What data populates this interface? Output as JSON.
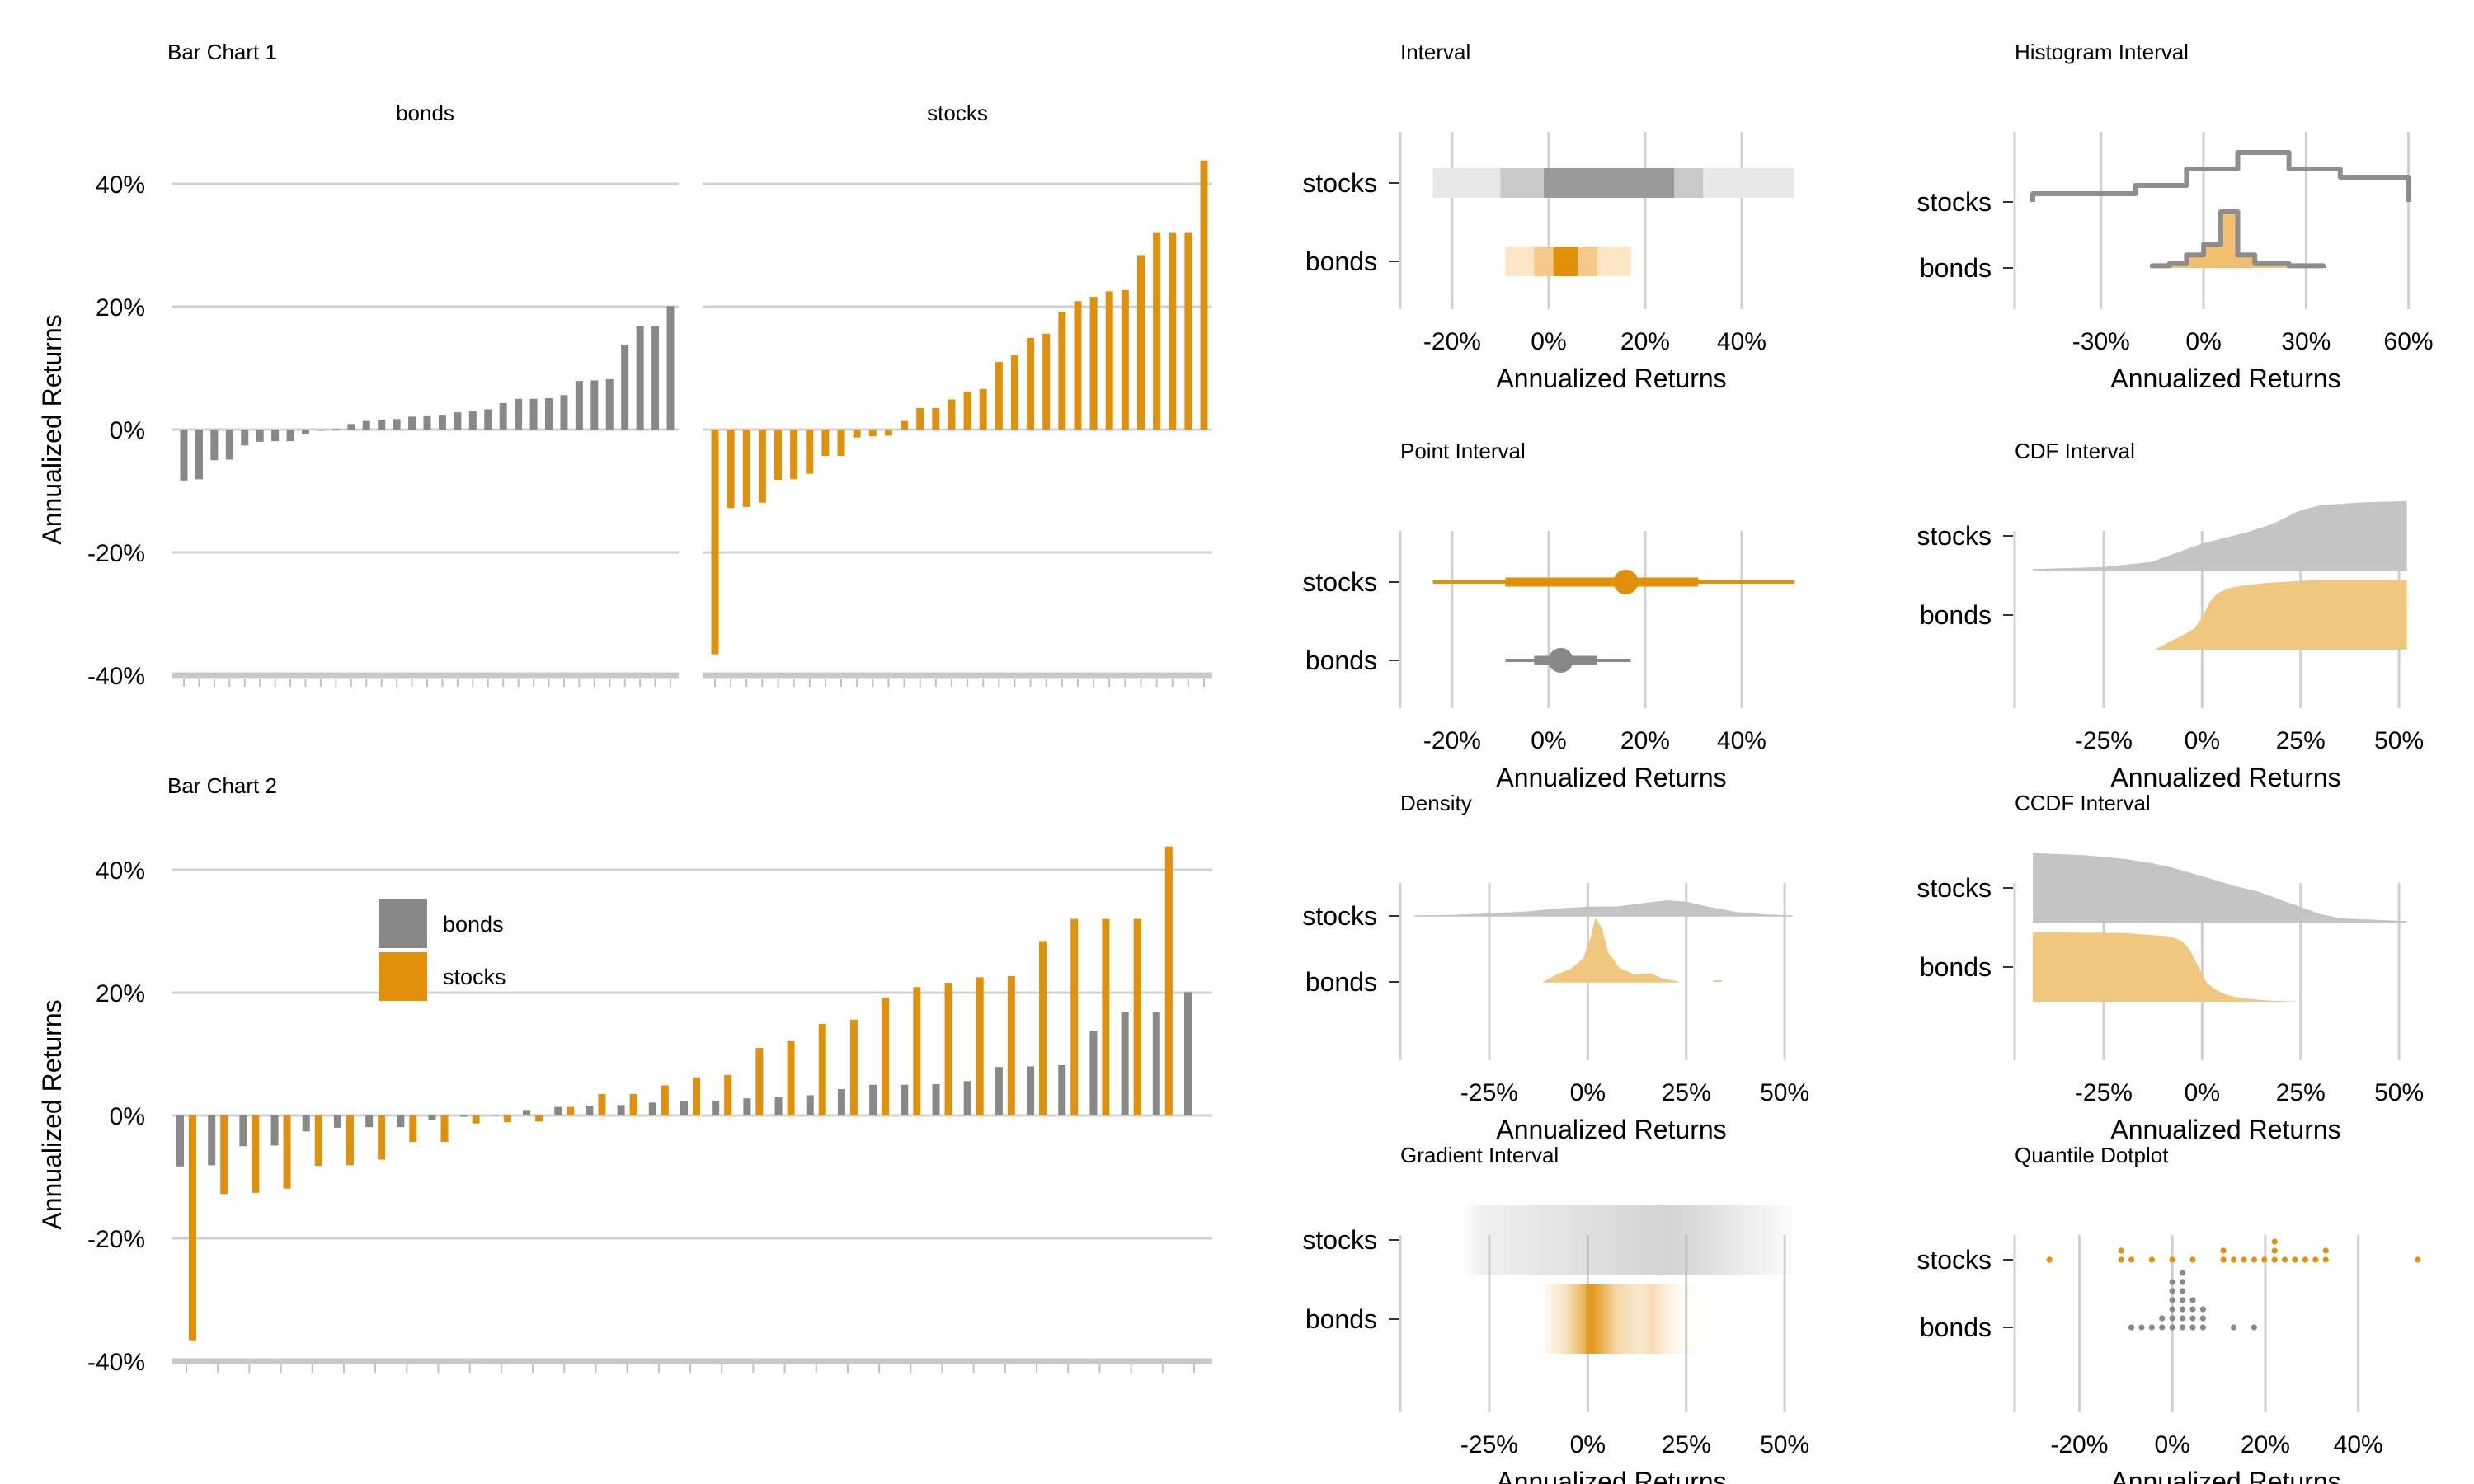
{
  "colors": {
    "bonds": "#888888",
    "stocks": "#E0900B",
    "grid": "#D0D0D0"
  },
  "axis_label": "Annualized Returns",
  "categories": [
    "stocks",
    "bonds"
  ],
  "chart_data": [
    {
      "id": "bar1",
      "type": "bar",
      "title": "Bar Chart 1",
      "panels": [
        "bonds",
        "stocks"
      ],
      "ylabel": "Annualized Returns",
      "ylim": [
        -40,
        40
      ],
      "yticks": [
        "40%",
        "20%",
        "0%",
        "-20%",
        "-40%"
      ],
      "grid": true,
      "series": [
        {
          "name": "bonds",
          "values": [
            -8.3,
            -8.1,
            -5.0,
            -4.9,
            -2.6,
            -2.0,
            -1.9,
            -1.9,
            -0.8,
            -0.2,
            0.1,
            0.9,
            1.4,
            1.6,
            1.7,
            2.1,
            2.3,
            2.4,
            2.8,
            3.0,
            3.3,
            4.3,
            5.0,
            5.0,
            5.1,
            5.6,
            7.9,
            8.0,
            8.2,
            13.8,
            16.8,
            16.8,
            20.1
          ]
        },
        {
          "name": "stocks",
          "values": [
            -36.6,
            -12.8,
            -12.6,
            -11.9,
            -8.2,
            -8.1,
            -7.2,
            -4.3,
            -4.3,
            -1.3,
            -1.1,
            -1.0,
            1.4,
            3.5,
            3.5,
            4.9,
            6.2,
            6.6,
            11.0,
            12.1,
            14.9,
            15.6,
            19.2,
            20.9,
            21.6,
            22.5,
            22.7,
            28.4,
            32.0,
            32.0,
            32.0,
            43.8
          ]
        }
      ]
    },
    {
      "id": "bar2",
      "type": "bar",
      "title": "Bar Chart 2",
      "ylabel": "Annualized Returns",
      "ylim": [
        -40,
        40
      ],
      "yticks": [
        "40%",
        "20%",
        "0%",
        "-20%",
        "-40%"
      ],
      "grid": true,
      "legend": "top-left",
      "series": [
        {
          "name": "bonds",
          "values": [
            -8.3,
            -8.1,
            -5.0,
            -4.9,
            -2.6,
            -2.0,
            -1.9,
            -1.9,
            -0.8,
            -0.2,
            0.1,
            0.9,
            1.4,
            1.6,
            1.7,
            2.1,
            2.3,
            2.4,
            2.8,
            3.0,
            3.3,
            4.3,
            5.0,
            5.0,
            5.1,
            5.6,
            7.9,
            8.0,
            8.2,
            13.8,
            16.8,
            16.8,
            20.1
          ]
        },
        {
          "name": "stocks",
          "values": [
            -36.6,
            -12.8,
            -12.6,
            -11.9,
            -8.2,
            -8.1,
            -7.2,
            -4.3,
            -4.3,
            -1.3,
            -1.1,
            -1.0,
            1.4,
            3.5,
            3.5,
            4.9,
            6.2,
            6.6,
            11.0,
            12.1,
            14.9,
            15.6,
            19.2,
            20.9,
            21.6,
            22.5,
            22.7,
            28.4,
            32.0,
            32.0,
            32.0,
            43.8
          ]
        }
      ]
    },
    {
      "id": "interval",
      "type": "interval",
      "title": "Interval",
      "xlabel": "Annualized Returns",
      "xlim": [
        -27,
        53
      ],
      "xticks": [
        -20,
        0,
        20,
        40
      ],
      "xticklabels": [
        "-20%",
        "0%",
        "20%",
        "40%"
      ],
      "series": [
        {
          "name": "stocks",
          "intervals": [
            [
              -24,
              51
            ],
            [
              -10,
              32
            ],
            [
              -1,
              26
            ]
          ]
        },
        {
          "name": "bonds",
          "intervals": [
            [
              -9,
              17
            ],
            [
              -3,
              10
            ],
            [
              1,
              6
            ]
          ]
        }
      ]
    },
    {
      "id": "histogram",
      "type": "histogram_interval",
      "title": "Histogram Interval",
      "xlabel": "Annualized Returns",
      "xlim": [
        -50,
        63
      ],
      "xticks": [
        -30,
        0,
        30,
        60
      ],
      "xticklabels": [
        "-30%",
        "0%",
        "30%",
        "60%"
      ],
      "series": [
        {
          "name": "stocks",
          "bins": [
            -50,
            -35,
            -20,
            -5,
            10,
            25,
            40,
            60
          ],
          "counts": [
            1,
            1,
            2,
            4,
            6,
            4,
            3
          ]
        },
        {
          "name": "bonds",
          "bins": [
            -15,
            -10,
            -5,
            0,
            5,
            10,
            15,
            20,
            25,
            35
          ],
          "counts": [
            1,
            2,
            6,
            11,
            26,
            6,
            2,
            2,
            1
          ]
        }
      ]
    },
    {
      "id": "point",
      "type": "point_interval",
      "title": "Point Interval",
      "xlabel": "Annualized Returns",
      "xlim": [
        -27,
        53
      ],
      "xticks": [
        -20,
        0,
        20,
        40
      ],
      "xticklabels": [
        "-20%",
        "0%",
        "20%",
        "40%"
      ],
      "series": [
        {
          "name": "stocks",
          "point": 16,
          "intervals": [
            [
              -24,
              51
            ],
            [
              -9,
              31
            ]
          ]
        },
        {
          "name": "bonds",
          "point": 2.5,
          "intervals": [
            [
              -9,
              17
            ],
            [
              -3,
              10
            ]
          ]
        }
      ]
    },
    {
      "id": "cdf",
      "type": "cdf_interval",
      "title": "CDF Interval",
      "xlabel": "Annualized Returns",
      "xlim": [
        -43,
        55
      ],
      "xticks": [
        -25,
        0,
        25,
        50
      ],
      "xticklabels": [
        "-25%",
        "0%",
        "25%",
        "50%"
      ],
      "series": [
        {
          "name": "stocks",
          "points": [
            [
              -43,
              0.02
            ],
            [
              -25,
              0.05
            ],
            [
              -13,
              0.12
            ],
            [
              -8,
              0.22
            ],
            [
              -3,
              0.32
            ],
            [
              0,
              0.38
            ],
            [
              5,
              0.45
            ],
            [
              12,
              0.55
            ],
            [
              18,
              0.66
            ],
            [
              22,
              0.77
            ],
            [
              25,
              0.85
            ],
            [
              30,
              0.92
            ],
            [
              40,
              0.96
            ],
            [
              52,
              0.98
            ]
          ]
        },
        {
          "name": "bonds",
          "points": [
            [
              -12,
              0.0
            ],
            [
              -8,
              0.12
            ],
            [
              -5,
              0.2
            ],
            [
              -2,
              0.3
            ],
            [
              0,
              0.45
            ],
            [
              2,
              0.68
            ],
            [
              4,
              0.8
            ],
            [
              7,
              0.87
            ],
            [
              10,
              0.9
            ],
            [
              16,
              0.94
            ],
            [
              22,
              0.96
            ],
            [
              28,
              0.98
            ],
            [
              52,
              0.98
            ]
          ]
        }
      ]
    },
    {
      "id": "density",
      "type": "density",
      "title": "Density",
      "xlabel": "Annualized Returns",
      "xlim": [
        -43,
        55
      ],
      "xticks": [
        -25,
        0,
        25,
        50
      ],
      "xticklabels": [
        "-25%",
        "0%",
        "25%",
        "50%"
      ],
      "series": [
        {
          "name": "stocks",
          "points": [
            [
              -44,
              0.0
            ],
            [
              -35,
              0.01
            ],
            [
              -25,
              0.04
            ],
            [
              -15,
              0.09
            ],
            [
              -8,
              0.15
            ],
            [
              0,
              0.19
            ],
            [
              8,
              0.2
            ],
            [
              15,
              0.28
            ],
            [
              20,
              0.33
            ],
            [
              25,
              0.3
            ],
            [
              30,
              0.2
            ],
            [
              38,
              0.07
            ],
            [
              45,
              0.02
            ],
            [
              52,
              0.0
            ]
          ]
        },
        {
          "name": "bonds",
          "points": [
            [
              -11,
              0.0
            ],
            [
              -8,
              0.1
            ],
            [
              -4,
              0.2
            ],
            [
              -1,
              0.35
            ],
            [
              1,
              0.7
            ],
            [
              2,
              0.95
            ],
            [
              3.5,
              0.8
            ],
            [
              5,
              0.45
            ],
            [
              8,
              0.2
            ],
            [
              12,
              0.1
            ],
            [
              16,
              0.12
            ],
            [
              19,
              0.04
            ],
            [
              23,
              0.0
            ]
          ]
        }
      ]
    },
    {
      "id": "ccdf",
      "type": "ccdf_interval",
      "title": "CCDF Interval",
      "xlabel": "Annualized Returns",
      "xlim": [
        -43,
        55
      ],
      "xticks": [
        -25,
        0,
        25,
        50
      ],
      "xticklabels": [
        "-25%",
        "0%",
        "25%",
        "50%"
      ],
      "series": [
        {
          "name": "stocks",
          "points": [
            [
              -43,
              0.98
            ],
            [
              -30,
              0.95
            ],
            [
              -20,
              0.9
            ],
            [
              -13,
              0.84
            ],
            [
              -8,
              0.78
            ],
            [
              -3,
              0.7
            ],
            [
              2,
              0.62
            ],
            [
              8,
              0.52
            ],
            [
              14,
              0.44
            ],
            [
              20,
              0.32
            ],
            [
              25,
              0.22
            ],
            [
              30,
              0.12
            ],
            [
              35,
              0.06
            ],
            [
              52,
              0.02
            ]
          ]
        },
        {
          "name": "bonds",
          "points": [
            [
              -43,
              0.98
            ],
            [
              -20,
              0.97
            ],
            [
              -8,
              0.92
            ],
            [
              -5,
              0.85
            ],
            [
              -3,
              0.72
            ],
            [
              -1,
              0.5
            ],
            [
              1,
              0.28
            ],
            [
              3,
              0.18
            ],
            [
              6,
              0.1
            ],
            [
              10,
              0.05
            ],
            [
              16,
              0.02
            ],
            [
              25,
              0.0
            ]
          ]
        }
      ]
    },
    {
      "id": "gradient",
      "type": "gradient_interval",
      "title": "Gradient Interval",
      "xlabel": "Annualized Returns",
      "xlim": [
        -43,
        55
      ],
      "xticks": [
        -25,
        0,
        25,
        50
      ],
      "xticklabels": [
        "-25%",
        "0%",
        "25%",
        "50%"
      ],
      "series": [
        {
          "name": "stocks",
          "range": [
            -32,
            52
          ]
        },
        {
          "name": "bonds",
          "range": [
            -11,
            33
          ]
        }
      ]
    },
    {
      "id": "dotplot",
      "type": "quantile_dotplot",
      "title": "Quantile Dotplot",
      "xlabel": "Annualized Returns",
      "xlim": [
        -30,
        53
      ],
      "xticks": [
        -20,
        0,
        20,
        40
      ],
      "xticklabels": [
        "-20%",
        "0%",
        "20%",
        "40%"
      ],
      "series": [
        {
          "name": "stocks",
          "values": [
            -26,
            -12,
            -11,
            -8,
            -4,
            -1,
            5,
            11,
            12,
            14,
            15,
            17,
            19,
            21,
            22,
            23,
            25,
            26,
            29,
            31,
            32,
            33,
            52
          ]
        },
        {
          "name": "bonds",
          "values": [
            -9,
            -6,
            -4,
            -3,
            -2,
            -1,
            0,
            0,
            1,
            1,
            1,
            2,
            2,
            2,
            3,
            3,
            3,
            3,
            4,
            4,
            5,
            5,
            6,
            6,
            7,
            14,
            17
          ]
        }
      ]
    }
  ]
}
